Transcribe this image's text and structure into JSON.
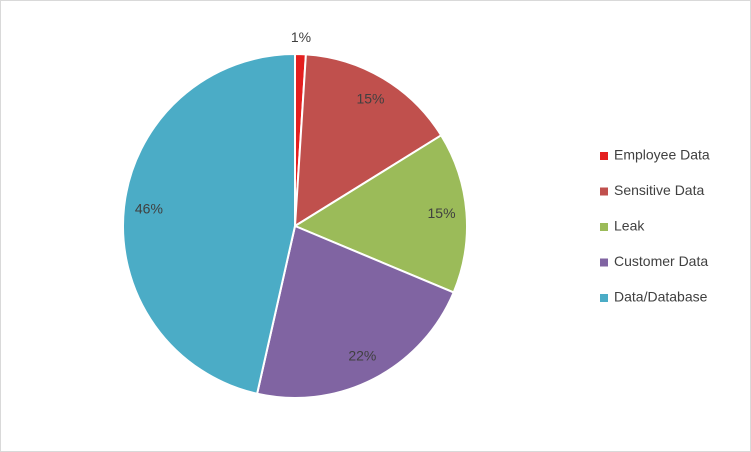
{
  "chart_data": {
    "type": "pie",
    "categories": [
      "Employee Data",
      "Sensitive Data",
      "Leak",
      "Customer Data",
      "Data/Database"
    ],
    "values": [
      1,
      15,
      15,
      22,
      46
    ],
    "value_labels": [
      "1%",
      "15%",
      "15%",
      "22%",
      "46%"
    ],
    "colors": [
      "#e41f1f",
      "#c0504d",
      "#9bbb59",
      "#8064a2",
      "#4bacc6"
    ],
    "legend": "right"
  }
}
